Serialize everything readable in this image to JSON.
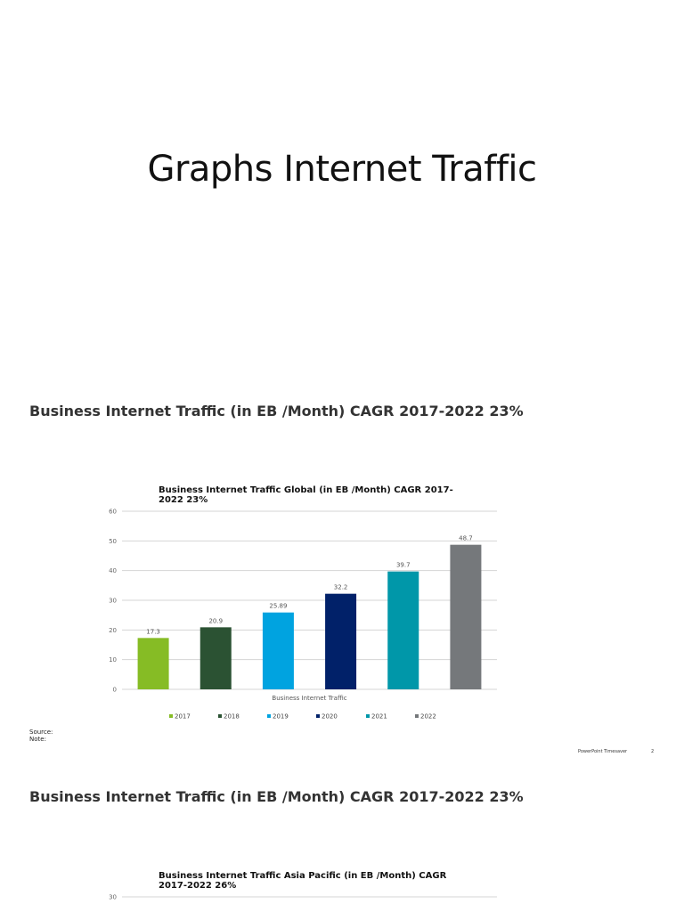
{
  "slide1": {
    "title": "Graphs Internet Traffic"
  },
  "slide2": {
    "heading": "Business Internet Traffic (in EB /Month) CAGR 2017-2022 23%",
    "source_label": "Source:",
    "note_label": "Note:",
    "footer_brand": "PowerPoint Timesaver",
    "footer_page": "2"
  },
  "slide3": {
    "heading": "Business Internet Traffic (in EB /Month) CAGR 2017-2022 23%"
  },
  "chart_data": [
    {
      "type": "bar",
      "title_lines": [
        "Business Internet Traffic Global (in EB /Month) CAGR 2017-",
        "2022 23%"
      ],
      "xlabel": "Business Internet Traffic",
      "ylim": [
        0,
        60
      ],
      "yticks": [
        0,
        10,
        20,
        30,
        40,
        50,
        60
      ],
      "grid": true,
      "legend_position": "bottom",
      "series": [
        {
          "name": "2017",
          "value": 17.3,
          "label": "17.3",
          "color": "#86bc25"
        },
        {
          "name": "2018",
          "value": 20.9,
          "label": "20.9",
          "color": "#2b5233"
        },
        {
          "name": "2019",
          "value": 25.89,
          "label": "25.89",
          "color": "#00a3e0"
        },
        {
          "name": "2020",
          "value": 32.2,
          "label": "32.2",
          "color": "#012169"
        },
        {
          "name": "2021",
          "value": 39.7,
          "label": "39.7",
          "color": "#0097a9"
        },
        {
          "name": "2022",
          "value": 48.7,
          "label": "48.7",
          "color": "#75787b"
        }
      ]
    },
    {
      "type": "bar",
      "title_lines": [
        "Business Internet Traffic Asia Pacific (in EB /Month) CAGR",
        "2017-2022 26%"
      ],
      "ylim": [
        0,
        30
      ],
      "yticks": [
        30
      ],
      "grid": true
    }
  ]
}
